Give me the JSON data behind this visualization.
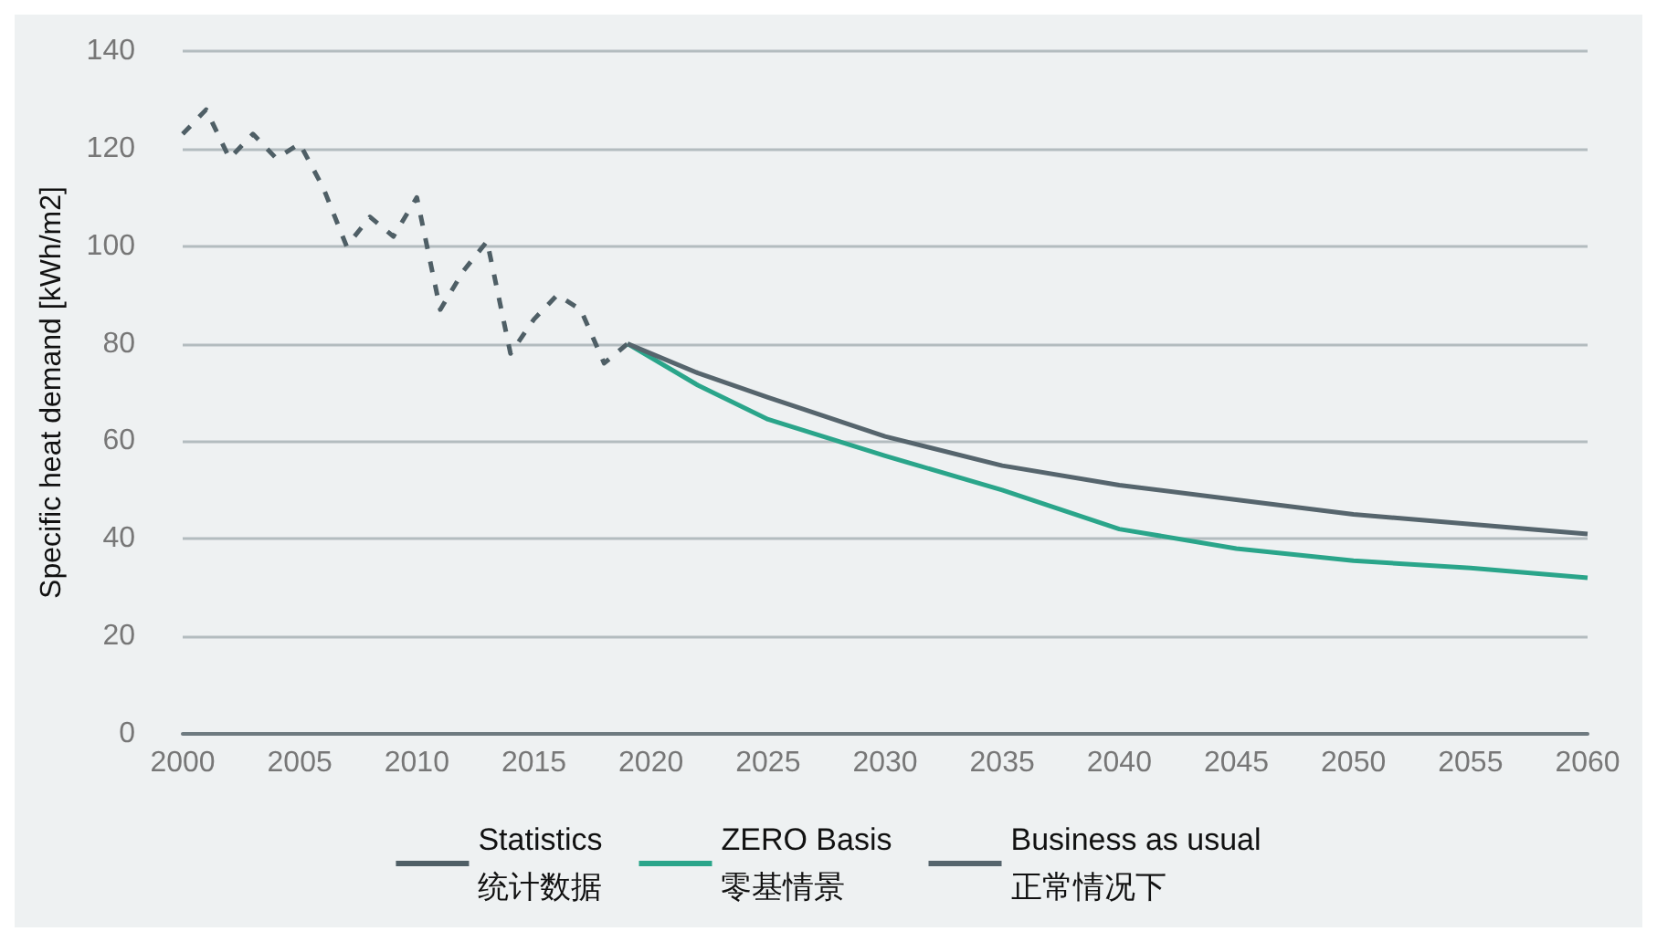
{
  "chart_data": {
    "type": "line",
    "ylabel": "Specific heat demand [kWh/m2]",
    "xlim": [
      2000,
      2060
    ],
    "xticks": [
      2000,
      2005,
      2010,
      2015,
      2020,
      2025,
      2030,
      2035,
      2040,
      2045,
      2050,
      2055,
      2060
    ],
    "ylim": [
      0,
      140
    ],
    "yticks": [
      0,
      20,
      40,
      60,
      80,
      100,
      120,
      140
    ],
    "grid": "y",
    "legend": "bottom",
    "marker": "none",
    "series": [
      {
        "name": "Statistics\n统计数据",
        "color": "#4f5f66",
        "line_style": "dashed",
        "x": [
          2000,
          2001,
          2002,
          2003,
          2004,
          2005,
          2006,
          2007,
          2008,
          2009,
          2010,
          2011,
          2012,
          2013,
          2014,
          2015,
          2016,
          2017,
          2018,
          2019
        ],
        "values": [
          123,
          128,
          118,
          123,
          118,
          121,
          112,
          100,
          106,
          102,
          110,
          87,
          95,
          101,
          78,
          85,
          90,
          87,
          76,
          80
        ]
      },
      {
        "name": "ZERO Basis\n零基情景",
        "color": "#2aa58a",
        "line_style": "solid",
        "x": [
          2019,
          2022,
          2025,
          2030,
          2035,
          2040,
          2045,
          2050,
          2055,
          2060
        ],
        "values": [
          80,
          71.5,
          64.5,
          57,
          50,
          42,
          38,
          35.5,
          34,
          32
        ]
      },
      {
        "name": "Business as usual\n正常情况下",
        "color": "#56656d",
        "line_style": "solid",
        "x": [
          2019,
          2022,
          2025,
          2030,
          2035,
          2040,
          2045,
          2050,
          2055,
          2060
        ],
        "values": [
          80,
          74,
          69,
          61,
          55,
          51,
          48,
          45,
          43,
          41
        ]
      }
    ]
  }
}
